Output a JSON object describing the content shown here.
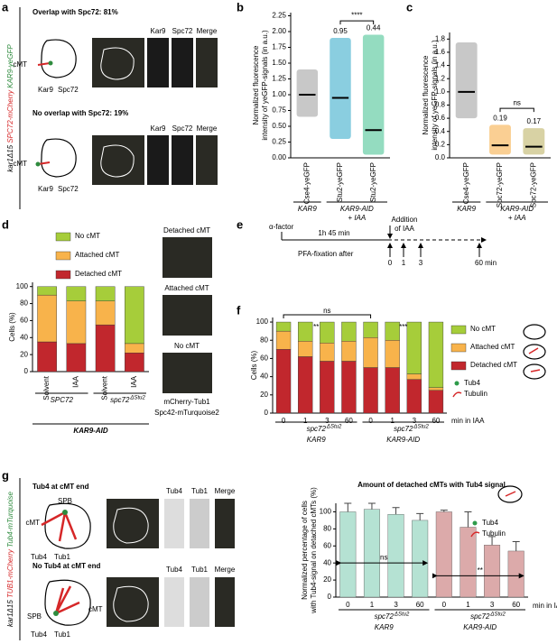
{
  "panel_labels": [
    "a",
    "b",
    "c",
    "d",
    "e",
    "f",
    "g"
  ],
  "panel_a": {
    "strain": [
      "kar1Δ15 ",
      "SPC72-mCherry ",
      "KAR9-yeGFP"
    ],
    "overlap": "Overlap with Spc72:  81%",
    "no_overlap": "No overlap with Spc72:  19%",
    "cmt": "cMT",
    "kar9": "Kar9",
    "spc72": "Spc72",
    "merge": "Merge"
  },
  "panel_d": {
    "image_labels": [
      "Detached cMT",
      "Attached cMT",
      "No cMT"
    ],
    "stain_red": "mCherry-Tub1",
    "stain_green": "Spc42-mTurquoise2"
  },
  "panel_e": {
    "alpha": "α-factor",
    "duration": "1h 45 min",
    "addition": [
      "Addition",
      "of IAA"
    ],
    "fixation": "PFA-fixation after",
    "times": [
      "0",
      "1",
      "3",
      "60 min"
    ]
  },
  "panel_g": {
    "strain": [
      "kar1Δ15 ",
      "TUB1-mCherry ",
      "Tub4-mTurquoise"
    ],
    "with": "Tub4 at cMT end",
    "without": "No Tub4 at cMT end",
    "spb": "SPB",
    "cmt": "cMT",
    "tub4": "Tub4",
    "tub1": "Tub1",
    "merge": "Merge"
  },
  "chart_data": [
    {
      "type": "strip",
      "ylabel": [
        "Normalized fluorescence",
        "intensity of yeGFP-signals (in a.u.)"
      ],
      "categories": [
        "Cse4-yeGFP",
        "Stu2-yeGFP",
        "Stu2-yeGFP"
      ],
      "values": [
        1.0,
        0.95,
        0.44
      ],
      "ranges": [
        [
          0.65,
          1.4
        ],
        [
          0.3,
          1.9
        ],
        [
          0.05,
          1.95
        ]
      ],
      "colors": [
        "#9a9a9a",
        "#2aa6c6",
        "#3dbf8c"
      ],
      "ylim": [
        0,
        2.3
      ],
      "yticks": [
        {
          "value": 0,
          "label": "0.00"
        },
        0.25,
        {
          "value": 0.5,
          "label": "0.50"
        },
        0.75,
        {
          "value": 1,
          "label": "1.00"
        },
        1.25,
        {
          "value": 1.5,
          "label": "1.50"
        },
        1.75,
        {
          "value": 2,
          "label": "2.00"
        },
        2.25
      ],
      "annotations": [
        "****"
      ],
      "groups": [
        {
          "lines": [
            "KAR9"
          ]
        },
        {
          "lines": [
            "KAR9-AID",
            "+ IAA"
          ]
        }
      ]
    },
    {
      "type": "strip",
      "ylabel": [
        "Normalized fluorescence",
        "intensity of yeGFP-signals (in a.u.)"
      ],
      "categories": [
        "Cse4-yeGFP",
        "Spc72-yeGFP",
        "Spc72-yeGFP"
      ],
      "values": [
        1.0,
        0.19,
        0.17
      ],
      "ranges": [
        [
          0.6,
          1.75
        ],
        [
          0.05,
          0.5
        ],
        [
          0.05,
          0.45
        ]
      ],
      "colors": [
        "#9a9a9a",
        "#f5a73b",
        "#b8ad5a"
      ],
      "ylim": [
        0,
        1.9
      ],
      "yticks": [
        {
          "value": 0,
          "label": "0.0"
        },
        0.2,
        0.4,
        0.6,
        0.8,
        {
          "value": 1,
          "label": "1.0"
        },
        1.2,
        1.4,
        1.6,
        1.8
      ],
      "annotations": [
        "ns"
      ],
      "groups": [
        {
          "lines": [
            "KAR9"
          ]
        },
        {
          "lines": [
            "KAR9-AID",
            "+ IAA"
          ]
        }
      ]
    },
    {
      "type": "stacked_bar",
      "ylabel": "Cells (%)",
      "categories": [
        "Solvent",
        "IAA",
        "Solvent",
        "IAA"
      ],
      "series": [
        {
          "name": "Detached cMT",
          "color": "#c1272d",
          "values": [
            35,
            33,
            55,
            22
          ]
        },
        {
          "name": "Attached cMT",
          "color": "#f8b34b",
          "values": [
            55,
            50,
            28,
            11
          ]
        },
        {
          "name": "No cMT",
          "color": "#a6cd3a",
          "values": [
            10,
            17,
            17,
            67
          ]
        }
      ],
      "ylim": [
        0,
        105
      ],
      "yticks": [
        0,
        20,
        40,
        60,
        80,
        100
      ],
      "groups": [
        {
          "lines": [
            "SPC72"
          ]
        },
        {
          "lines": [
            "spc72"
          ],
          "sup": "ΔStu2"
        }
      ],
      "footer": "KAR9-AID"
    },
    {
      "type": "stacked_bar",
      "ylabel": "Cells (%)",
      "categories": [
        "0",
        "1",
        "3",
        "60",
        "0",
        "1",
        "3",
        "60"
      ],
      "series": [
        {
          "name": "Detached cMT",
          "color": "#c1272d",
          "values": [
            70,
            62,
            57,
            57,
            50,
            50,
            37,
            25
          ]
        },
        {
          "name": "Attached cMT",
          "color": "#f8b34b",
          "values": [
            20,
            17,
            20,
            22,
            33,
            30,
            6,
            3
          ]
        },
        {
          "name": "No cMT",
          "color": "#a6cd3a",
          "values": [
            10,
            21,
            23,
            21,
            17,
            20,
            57,
            72
          ]
        }
      ],
      "ylim": [
        0,
        105
      ],
      "yticks": [
        0,
        20,
        40,
        60,
        80,
        100
      ],
      "xlabel": "min in IAA",
      "annotations": [
        "ns",
        "**",
        "***"
      ],
      "legend_extra": [
        "Tub4",
        "Tubulin"
      ],
      "groups": [
        {
          "lines": [
            "spc72",
            "KAR9"
          ],
          "sup": "ΔStu2"
        },
        {
          "lines": [
            "spc72",
            "KAR9-AID"
          ],
          "sup": "ΔStu2"
        }
      ]
    },
    {
      "type": "bar",
      "title": "Amount of detached cMTs with Tub4 signal",
      "ylabel": [
        "Normalized percentage of cells",
        "with Tub4-signal on detached cMTs (%)"
      ],
      "categories": [
        "0",
        "1",
        "3",
        "60",
        "0",
        "1",
        "3",
        "60"
      ],
      "values": [
        100,
        103,
        97,
        90,
        100,
        82,
        61,
        54
      ],
      "errors": [
        10,
        7,
        8,
        8,
        2,
        18,
        10,
        11
      ],
      "colors": [
        "#b5e2d3",
        "#b5e2d3",
        "#b5e2d3",
        "#b5e2d3",
        "#dcaaaa",
        "#dcaaaa",
        "#dcaaaa",
        "#dcaaaa"
      ],
      "ylim": [
        0,
        110
      ],
      "yticks": [
        0,
        20,
        40,
        60,
        80,
        100
      ],
      "xlabel": "min in IAA",
      "annotations": [
        "ns",
        "**"
      ],
      "legend_extra": [
        "Tub4",
        "Tubulin"
      ],
      "groups": [
        {
          "lines": [
            "spc72",
            "KAR9"
          ],
          "sup": "ΔStu2"
        },
        {
          "lines": [
            "spc72",
            "KAR9-AID"
          ],
          "sup": "ΔStu2"
        }
      ]
    }
  ]
}
